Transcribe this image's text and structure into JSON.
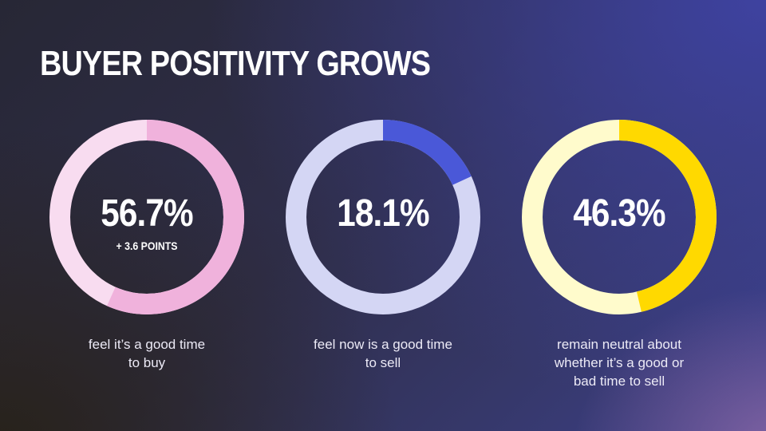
{
  "title": "BUYER POSITIVITY GROWS",
  "chart_data": [
    {
      "type": "pie",
      "title": "BUYER POSITIVITY GROWS",
      "value_label": "56.7%",
      "value": 56.7,
      "subtitle": "+ 3.6 POINTS",
      "caption_lines": [
        "feel it’s a good time",
        "to buy"
      ],
      "colors": {
        "value": "#f0b2dc",
        "rest": "#f8dcf0"
      }
    },
    {
      "type": "pie",
      "value_label": "18.1%",
      "value": 18.1,
      "caption_lines": [
        "feel now is a good time",
        "to sell"
      ],
      "colors": {
        "value": "#4a58d8",
        "rest": "#d4d6f4"
      }
    },
    {
      "type": "pie",
      "value_label": "46.3%",
      "value": 46.3,
      "caption_lines": [
        "remain neutral about",
        "whether it’s a good or",
        "bad time to sell"
      ],
      "colors": {
        "value": "#ffd900",
        "rest": "#fffbcc"
      }
    }
  ]
}
